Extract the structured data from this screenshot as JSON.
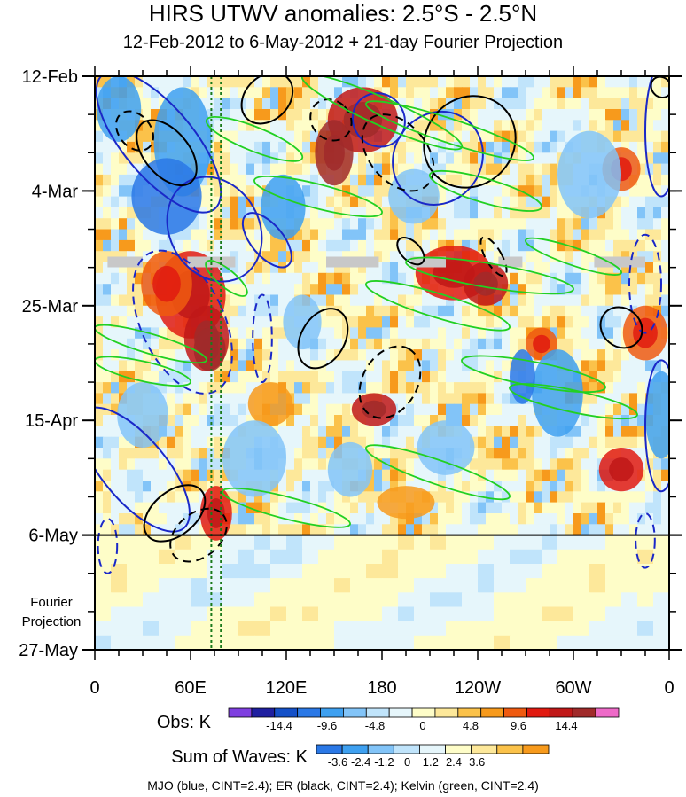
{
  "title": "HIRS UTWV anomalies: 2.5°S - 2.5°N",
  "subtitle": "12-Feb-2012 to 6-May-2012 + 21-day Fourier Projection",
  "footer": "MJO (blue, CINT=2.4); ER (black, CINT=2.4); Kelvin (green, CINT=2.4)",
  "colorbars": {
    "obs": {
      "label": "Obs: K",
      "tick_labels": [
        "-14.4",
        "-9.6",
        "-4.8",
        "0",
        "4.8",
        "9.6",
        "14.4"
      ],
      "colors": [
        "#7f3fe0",
        "#1f1fa0",
        "#1450c8",
        "#2a78e6",
        "#3ea0f0",
        "#82c4f8",
        "#c0e4fb",
        "#e6f6fb",
        "#fefdc8",
        "#fde89a",
        "#fbc24a",
        "#f79a1c",
        "#ef5a10",
        "#e11a10",
        "#c01818",
        "#a02a2a",
        "#ee6ac8"
      ]
    },
    "waves": {
      "label": "Sum of Waves: K",
      "tick_labels": [
        "-3.6",
        "-2.4",
        "-1.2",
        "0",
        "1.2",
        "2.4",
        "3.6"
      ],
      "colors": [
        "#2a78e6",
        "#3ea0f0",
        "#82c4f8",
        "#c0e4fb",
        "#e6f6fb",
        "#fefdc8",
        "#fde89a",
        "#fbc24a",
        "#f79a1c"
      ]
    }
  },
  "chart_data": {
    "type": "heatmap",
    "description_vars": "Hovmoller: longitude (x) vs time (y)",
    "x_ticks": [
      "0",
      "60E",
      "120E",
      "180",
      "120W",
      "60W",
      "0"
    ],
    "x_tick_values": [
      0,
      60,
      120,
      180,
      240,
      300,
      360
    ],
    "xlim": [
      0,
      360
    ],
    "y_ticks": [
      "12-Feb",
      "4-Mar",
      "25-Mar",
      "15-Apr",
      "6-May",
      "27-May"
    ],
    "y_tick_values": [
      0,
      21,
      42,
      63,
      84,
      105
    ],
    "ylim": [
      0,
      105
    ],
    "y_minor_step_days": 7,
    "y_annotation": "Fourier Projection",
    "projection_start_day": 84,
    "reference_longitudes": [
      73,
      79
    ],
    "missing_data": [
      {
        "day": 34,
        "lon": [
          8,
          30
        ]
      },
      {
        "day": 34,
        "lon": [
          58,
          88
        ]
      },
      {
        "day": 34,
        "lon": [
          145,
          178
        ]
      },
      {
        "day": 34,
        "lon": [
          198,
          220
        ]
      },
      {
        "day": 34,
        "lon": [
          253,
          268
        ]
      },
      {
        "day": 34,
        "lon": [
          313,
          345
        ]
      }
    ],
    "anomaly_blobs": [
      {
        "lon": 168,
        "day": 8,
        "rl": 22,
        "rd": 6,
        "level": 14
      },
      {
        "lon": 150,
        "day": 14,
        "rl": 12,
        "rd": 6,
        "level": 15
      },
      {
        "lon": 60,
        "day": 40,
        "rl": 22,
        "rd": 8,
        "level": 13
      },
      {
        "lon": 70,
        "day": 48,
        "rl": 14,
        "rd": 6,
        "level": 14
      },
      {
        "lon": 72,
        "day": 50,
        "rl": 10,
        "rd": 4,
        "level": 15
      },
      {
        "lon": 45,
        "day": 38,
        "rl": 16,
        "rd": 6,
        "level": 12
      },
      {
        "lon": 225,
        "day": 36,
        "rl": 24,
        "rd": 5,
        "level": 13
      },
      {
        "lon": 245,
        "day": 38,
        "rl": 14,
        "rd": 4,
        "level": 14
      },
      {
        "lon": 175,
        "day": 61,
        "rl": 14,
        "rd": 3,
        "level": 14
      },
      {
        "lon": 76,
        "day": 80,
        "rl": 10,
        "rd": 5,
        "level": 13
      },
      {
        "lon": 330,
        "day": 72,
        "rl": 14,
        "rd": 4,
        "level": 13
      },
      {
        "lon": 345,
        "day": 47,
        "rl": 14,
        "rd": 5,
        "level": 12
      },
      {
        "lon": 330,
        "day": 17,
        "rl": 12,
        "rd": 4,
        "level": 12
      },
      {
        "lon": 280,
        "day": 49,
        "rl": 10,
        "rd": 3,
        "level": 12
      },
      {
        "lon": 110,
        "day": 60,
        "rl": 14,
        "rd": 4,
        "level": 11
      },
      {
        "lon": 195,
        "day": 78,
        "rl": 18,
        "rd": 3,
        "level": 11
      },
      {
        "lon": 55,
        "day": 12,
        "rl": 18,
        "rd": 10,
        "level": 4
      },
      {
        "lon": 45,
        "day": 22,
        "rl": 22,
        "rd": 7,
        "level": 3
      },
      {
        "lon": 15,
        "day": 6,
        "rl": 14,
        "rd": 6,
        "level": 4
      },
      {
        "lon": 310,
        "day": 18,
        "rl": 20,
        "rd": 8,
        "level": 5
      },
      {
        "lon": 290,
        "day": 58,
        "rl": 16,
        "rd": 8,
        "level": 4
      },
      {
        "lon": 268,
        "day": 55,
        "rl": 8,
        "rd": 5,
        "level": 3
      },
      {
        "lon": 355,
        "day": 62,
        "rl": 10,
        "rd": 8,
        "level": 4
      },
      {
        "lon": 118,
        "day": 24,
        "rl": 14,
        "rd": 6,
        "level": 4
      },
      {
        "lon": 200,
        "day": 22,
        "rl": 16,
        "rd": 5,
        "level": 5
      },
      {
        "lon": 100,
        "day": 70,
        "rl": 20,
        "rd": 7,
        "level": 5
      },
      {
        "lon": 160,
        "day": 72,
        "rl": 14,
        "rd": 5,
        "level": 5
      },
      {
        "lon": 30,
        "day": 62,
        "rl": 16,
        "rd": 6,
        "level": 5
      },
      {
        "lon": 220,
        "day": 68,
        "rl": 18,
        "rd": 5,
        "level": 5
      },
      {
        "lon": 130,
        "day": 45,
        "rl": 12,
        "rd": 5,
        "level": 5
      }
    ],
    "mjo_contours": [
      {
        "lon": 40,
        "day": 12,
        "rl": 22,
        "rd": 16,
        "rot": -40,
        "dashed": false
      },
      {
        "lon": 75,
        "day": 28,
        "rl": 28,
        "rd": 10,
        "rot": -30,
        "dashed": false
      },
      {
        "lon": 55,
        "day": 45,
        "rl": 26,
        "rd": 14,
        "rot": -25,
        "dashed": true
      },
      {
        "lon": 25,
        "day": 72,
        "rl": 20,
        "rd": 14,
        "rot": -40,
        "dashed": false
      },
      {
        "lon": 108,
        "day": 30,
        "rl": 10,
        "rd": 6,
        "rot": -40,
        "dashed": false
      },
      {
        "lon": 178,
        "day": 8,
        "rl": 16,
        "rd": 5,
        "rot": -35,
        "dashed": false
      },
      {
        "lon": 215,
        "day": 15,
        "rl": 30,
        "rd": 8,
        "rot": -55,
        "dashed": false
      },
      {
        "lon": 105,
        "day": 48,
        "rl": 6,
        "rd": 8,
        "rot": 0,
        "dashed": true
      },
      {
        "lon": 355,
        "day": 10,
        "rl": 10,
        "rd": 12,
        "rot": 0,
        "dashed": false
      },
      {
        "lon": 355,
        "day": 64,
        "rl": 10,
        "rd": 12,
        "rot": 0,
        "dashed": false
      },
      {
        "lon": 345,
        "day": 85,
        "rl": 6,
        "rd": 5,
        "rot": 0,
        "dashed": true
      },
      {
        "lon": 8,
        "day": 86,
        "rl": 6,
        "rd": 5,
        "rot": 0,
        "dashed": true
      },
      {
        "lon": 345,
        "day": 38,
        "rl": 10,
        "rd": 9,
        "rot": 0,
        "dashed": true
      }
    ],
    "er_contours": [
      {
        "lon": 45,
        "day": 14,
        "rl": 14,
        "rd": 7,
        "rot": -40,
        "dashed": false
      },
      {
        "lon": 25,
        "day": 10,
        "rl": 10,
        "rd": 4,
        "rot": -40,
        "dashed": true
      },
      {
        "lon": 108,
        "day": 4,
        "rl": 18,
        "rd": 4,
        "rot": -45,
        "dashed": false
      },
      {
        "lon": 148,
        "day": 8,
        "rl": 12,
        "rd": 4,
        "rot": -45,
        "dashed": true
      },
      {
        "lon": 190,
        "day": 14,
        "rl": 18,
        "rd": 8,
        "rot": -40,
        "dashed": true
      },
      {
        "lon": 235,
        "day": 12,
        "rl": 30,
        "rd": 8,
        "rot": -45,
        "dashed": false
      },
      {
        "lon": 143,
        "day": 48,
        "rl": 20,
        "rd": 4,
        "rot": -60,
        "dashed": false
      },
      {
        "lon": 185,
        "day": 56,
        "rl": 24,
        "rd": 5,
        "rot": -60,
        "dashed": true
      },
      {
        "lon": 198,
        "day": 32,
        "rl": 6,
        "rd": 3,
        "rot": -45,
        "dashed": false
      },
      {
        "lon": 250,
        "day": 33,
        "rl": 5,
        "rd": 4,
        "rot": -30,
        "dashed": true
      },
      {
        "lon": 330,
        "day": 46,
        "rl": 12,
        "rd": 4,
        "rot": -50,
        "dashed": false
      },
      {
        "lon": 50,
        "day": 80,
        "rl": 22,
        "rd": 4,
        "rot": -40,
        "dashed": false
      },
      {
        "lon": 65,
        "day": 84,
        "rl": 20,
        "rd": 4,
        "rot": -40,
        "dashed": true
      },
      {
        "lon": 355,
        "day": 2,
        "rl": 6,
        "rd": 2,
        "rot": -40,
        "dashed": false
      }
    ],
    "kelvin_contours": [
      {
        "lon1": 70,
        "day1": 8,
        "lon2": 130,
        "day2": 15,
        "w": 2.2
      },
      {
        "lon1": 130,
        "day1": 0,
        "lon2": 230,
        "day2": 13,
        "w": 2.5
      },
      {
        "lon1": 170,
        "day1": 5,
        "lon2": 275,
        "day2": 15,
        "w": 2.2
      },
      {
        "lon1": 100,
        "day1": 19,
        "lon2": 180,
        "day2": 25,
        "w": 2.2
      },
      {
        "lon1": 210,
        "day1": 18,
        "lon2": 280,
        "day2": 24,
        "w": 2.2
      },
      {
        "lon1": 195,
        "day1": 34,
        "lon2": 300,
        "day2": 39,
        "w": 2.2
      },
      {
        "lon1": 170,
        "day1": 38,
        "lon2": 260,
        "day2": 46,
        "w": 2.2
      },
      {
        "lon1": 0,
        "day1": 46,
        "lon2": 70,
        "day2": 52,
        "w": 1.8
      },
      {
        "lon1": 0,
        "day1": 52,
        "lon2": 60,
        "day2": 56,
        "w": 1.8
      },
      {
        "lon1": 230,
        "day1": 52,
        "lon2": 320,
        "day2": 57,
        "w": 2.2
      },
      {
        "lon1": 260,
        "day1": 57,
        "lon2": 340,
        "day2": 62,
        "w": 2.0
      },
      {
        "lon1": 170,
        "day1": 68,
        "lon2": 260,
        "day2": 77,
        "w": 2.2
      },
      {
        "lon1": 80,
        "day1": 76,
        "lon2": 160,
        "day2": 82,
        "w": 2.0
      },
      {
        "lon1": 70,
        "day1": 34,
        "lon2": 95,
        "day2": 40,
        "w": 1.6
      },
      {
        "lon1": 270,
        "day1": 30,
        "lon2": 330,
        "day2": 36,
        "w": 1.6
      }
    ]
  }
}
